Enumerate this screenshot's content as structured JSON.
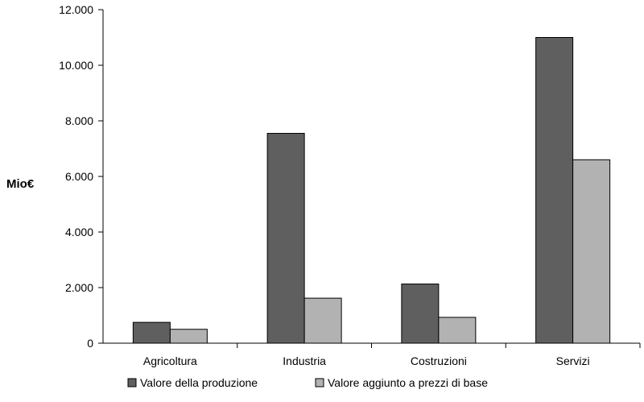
{
  "chart_data": {
    "type": "bar",
    "title": "",
    "xlabel": "",
    "ylabel": "Mio€",
    "categories": [
      "Agricoltura",
      "Industria",
      "Costruzioni",
      "Servizi"
    ],
    "series": [
      {
        "name": "Valore della produzione",
        "color": "#5f5f5f",
        "values": [
          750,
          7550,
          2130,
          11000
        ]
      },
      {
        "name": "Valore aggiunto a prezzi di base",
        "color": "#b2b2b2",
        "values": [
          500,
          1620,
          930,
          6600
        ]
      }
    ],
    "ylim": [
      0,
      12000
    ],
    "yticks": [
      0,
      2000,
      4000,
      6000,
      8000,
      10000,
      12000
    ],
    "ytick_labels": [
      "0",
      "2.000",
      "4.000",
      "6.000",
      "8.000",
      "10.000",
      "12.000"
    ],
    "grid": false,
    "legend_position": "bottom"
  }
}
